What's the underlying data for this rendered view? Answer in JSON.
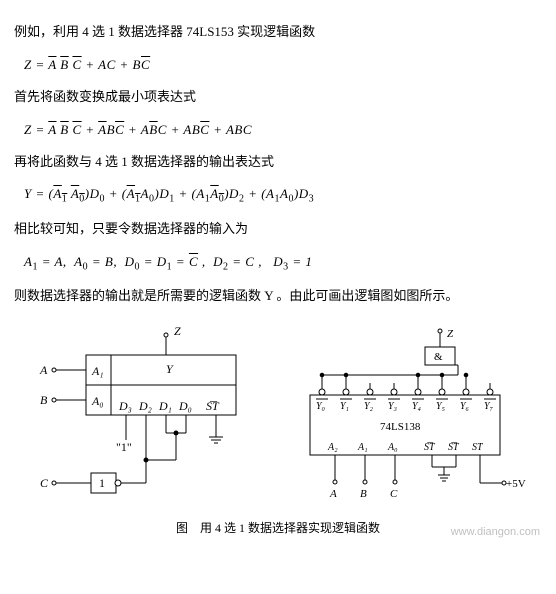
{
  "para1": "例如，利用 4 选 1 数据选择器 74LS153 实现逻辑函数",
  "eq1": {
    "lhs": "Z",
    "rhs_html": "= <span class='ov'>A</span> <span class='ov'>B</span> <span class='ov'>C</span> + AC + B<span class='ov'>C</span>"
  },
  "para2": "首先将函数变换成最小项表达式",
  "eq2": {
    "lhs": "Z",
    "rhs_html": "= <span class='ov'>A</span> <span class='ov'>B</span> <span class='ov'>C</span> + <span class='ov'>A</span>B<span class='ov'>C</span> + A<span class='ov'>B</span>C + AB<span class='ov'>C</span> + ABC"
  },
  "para3": "再将此函数与 4 选 1 数据选择器的输出表达式",
  "eq3": {
    "lhs": "Y",
    "rhs_html": "= (<span class='ov'>A<span class='sub'>1</span></span> <span class='ov'>A<span class='sub'>0</span></span>)D<span class='sub'>0</span> + (<span class='ov'>A<span class='sub'>1</span></span>A<span class='sub'>0</span>)D<span class='sub'>1</span> + (A<span class='sub'>1</span><span class='ov'>A<span class='sub'>0</span></span>)D<span class='sub'>2</span> + (A<span class='sub'>1</span>A<span class='sub'>0</span>)D<span class='sub'>3</span>"
  },
  "para4": "相比较可知，只要令数据选择器的输入为",
  "eq4_html": "A<span class='sub'>1</span> = A,&nbsp;&nbsp;A<span class='sub'>0</span> = B,&nbsp;&nbsp;D<span class='sub'>0</span> = D<span class='sub'>1</span> = <span class='ov'>C</span> ,&nbsp;&nbsp;D<span class='sub'>2</span> = C ,&nbsp;&nbsp;&nbsp;D<span class='sub'>3</span> = 1",
  "para5": "则数据选择器的输出就是所需要的逻辑函数 Y 。由此可画出逻辑图如图所示。",
  "caption": "图　用 4 选 1 数据选择器实现逻辑函数",
  "watermark": "www.diangon.com",
  "figA": {
    "Z": "Z",
    "Y": "Y",
    "A": "A",
    "B": "B",
    "C": "C",
    "A1": "A₁",
    "A0": "A₀",
    "D3": "D₃",
    "D2": "D₂",
    "D1": "D₁",
    "D0": "D₀",
    "ST": "S͞T",
    "one": "\"1\"",
    "inv": "1"
  },
  "figB": {
    "Z": "Z",
    "amp": "&",
    "chip": "74LS138",
    "Y": [
      "Y₀",
      "Y₁",
      "Y₂",
      "Y₃",
      "Y₄",
      "Y₅",
      "Y₆",
      "Y₇"
    ],
    "bot": [
      "A₂",
      "A₁",
      "A₀",
      "S͞T",
      "S͞T",
      "ST"
    ],
    "botExt": [
      "A",
      "B",
      "C"
    ],
    "vcc": "+5V"
  }
}
